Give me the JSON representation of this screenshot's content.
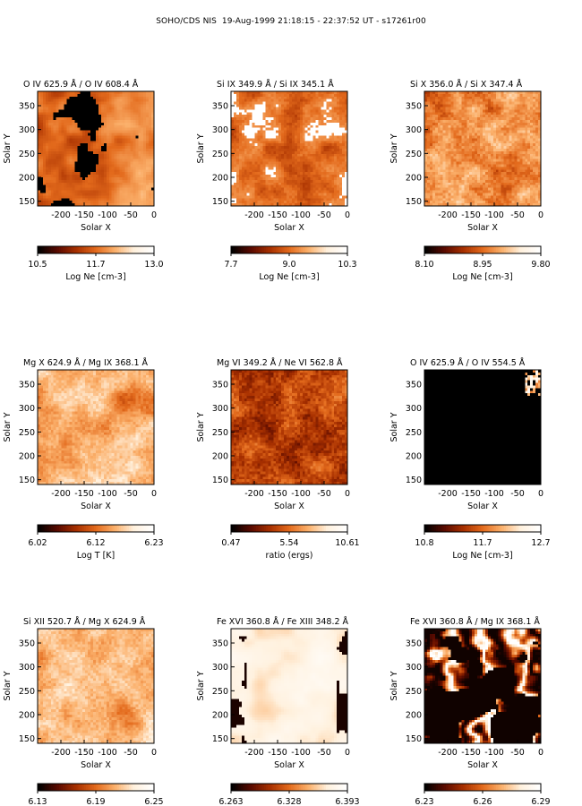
{
  "title": "SOHO/CDS NIS  19-Aug-1999 21:18:15 - 22:37:52 UT - s17261r00",
  "colormap": {
    "name": "red-temperature",
    "stops": [
      "#000000",
      "#5a0a00",
      "#a83000",
      "#e36a1c",
      "#fbb06b",
      "#fff1de",
      "#ffffff"
    ]
  },
  "chart_data": [
    {
      "type": "heatmap",
      "title": "O IV  625.9 Å / O IV  608.4 Å",
      "xlabel": "Solar X",
      "ylabel": "Solar Y",
      "xlim": [
        -250,
        0
      ],
      "ylim": [
        140,
        380
      ],
      "xticks": [
        -200,
        -150,
        -100,
        -50,
        0
      ],
      "yticks": [
        150,
        200,
        250,
        300,
        350
      ],
      "colorbar": {
        "label": "Log Ne [cm-3]",
        "ticks": [
          "10.5",
          "11.7",
          "13.0"
        ],
        "range": [
          10.5,
          13.0
        ]
      },
      "pattern": "holes"
    },
    {
      "type": "heatmap",
      "title": "Si IX  349.9 Å / Si IX  345.1 Å",
      "xlabel": "Solar X",
      "ylabel": "Solar Y",
      "xlim": [
        -250,
        0
      ],
      "ylim": [
        140,
        380
      ],
      "xticks": [
        -200,
        -150,
        -100,
        -50,
        0
      ],
      "yticks": [
        150,
        200,
        250,
        300,
        350
      ],
      "colorbar": {
        "label": "Log Ne [cm-3]",
        "ticks": [
          "7.7",
          "9.0",
          "10.3"
        ],
        "range": [
          7.7,
          10.3
        ]
      },
      "pattern": "speckle-saturated"
    },
    {
      "type": "heatmap",
      "title": "Si X  356.0 Å / Si X  347.4 Å",
      "xlabel": "Solar X",
      "ylabel": "Solar Y",
      "xlim": [
        -250,
        0
      ],
      "ylim": [
        140,
        380
      ],
      "xticks": [
        -200,
        -150,
        -100,
        -50,
        0
      ],
      "yticks": [
        150,
        200,
        250,
        300,
        350
      ],
      "colorbar": {
        "label": "Log Ne [cm-3]",
        "ticks": [
          "8.10",
          "8.95",
          "9.80"
        ],
        "range": [
          8.1,
          9.8
        ]
      },
      "pattern": "speckle"
    },
    {
      "type": "heatmap",
      "title": "Mg X  624.9 Å / Mg IX  368.1 Å",
      "xlabel": "Solar X",
      "ylabel": "Solar Y",
      "xlim": [
        -250,
        0
      ],
      "ylim": [
        140,
        380
      ],
      "xticks": [
        -200,
        -150,
        -100,
        -50,
        0
      ],
      "yticks": [
        150,
        200,
        250,
        300,
        350
      ],
      "colorbar": {
        "label": "Log  T  [K]",
        "ticks": [
          "6.02",
          "6.12",
          "6.23"
        ],
        "range": [
          6.02,
          6.23
        ]
      },
      "pattern": "smooth-bright"
    },
    {
      "type": "heatmap",
      "title": "Mg VI  349.2 Å / Ne VI  562.8 Å",
      "xlabel": "Solar X",
      "ylabel": "Solar Y",
      "xlim": [
        -250,
        0
      ],
      "ylim": [
        140,
        380
      ],
      "xticks": [
        -200,
        -150,
        -100,
        -50,
        0
      ],
      "yticks": [
        150,
        200,
        250,
        300,
        350
      ],
      "colorbar": {
        "label": "ratio (ergs)",
        "ticks": [
          "0.47",
          "5.54",
          "10.61"
        ],
        "range": [
          0.47,
          10.61
        ]
      },
      "pattern": "speckle-dark"
    },
    {
      "type": "heatmap",
      "title": "O IV  625.9 Å / O IV  554.5 Å",
      "xlabel": "Solar X",
      "ylabel": "Solar Y",
      "xlim": [
        -250,
        0
      ],
      "ylim": [
        140,
        380
      ],
      "xticks": [
        -200,
        -150,
        -100,
        -50,
        0
      ],
      "yticks": [
        150,
        200,
        250,
        300,
        350
      ],
      "colorbar": {
        "label": "Log Ne [cm-3]",
        "ticks": [
          "10.8",
          "11.7",
          "12.7"
        ],
        "range": [
          10.8,
          12.7
        ]
      },
      "pattern": "black"
    },
    {
      "type": "heatmap",
      "title": "Si XII  520.7 Å / Mg X  624.9 Å",
      "xlabel": "Solar X",
      "ylabel": "Solar Y",
      "xlim": [
        -250,
        0
      ],
      "ylim": [
        140,
        380
      ],
      "xticks": [
        -200,
        -150,
        -100,
        -50,
        0
      ],
      "yticks": [
        150,
        200,
        250,
        300,
        350
      ],
      "colorbar": {
        "label": "",
        "ticks": [
          "6.13",
          "6.19",
          "6.25"
        ],
        "range": [
          6.13,
          6.25
        ]
      },
      "pattern": "smooth-bright"
    },
    {
      "type": "heatmap",
      "title": "Fe XVI  360.8 Å / Fe XIII  348.2 Å",
      "xlabel": "Solar X",
      "ylabel": "Solar Y",
      "xlim": [
        -250,
        0
      ],
      "ylim": [
        140,
        380
      ],
      "xticks": [
        -200,
        -150,
        -100,
        -50,
        0
      ],
      "yticks": [
        150,
        200,
        250,
        300,
        350
      ],
      "colorbar": {
        "label": "",
        "ticks": [
          "6.263",
          "6.328",
          "6.393"
        ],
        "range": [
          6.263,
          6.393
        ]
      },
      "pattern": "pale"
    },
    {
      "type": "heatmap",
      "title": "Fe XVI  360.8 Å / Mg IX  368.1 Å",
      "xlabel": "Solar X",
      "ylabel": "Solar Y",
      "xlim": [
        -250,
        0
      ],
      "ylim": [
        140,
        380
      ],
      "xticks": [
        -200,
        -150,
        -100,
        -50,
        0
      ],
      "yticks": [
        150,
        200,
        250,
        300,
        350
      ],
      "colorbar": {
        "label": "",
        "ticks": [
          "6.23",
          "6.26",
          "6.29"
        ],
        "range": [
          6.23,
          6.29
        ]
      },
      "pattern": "loops"
    }
  ]
}
